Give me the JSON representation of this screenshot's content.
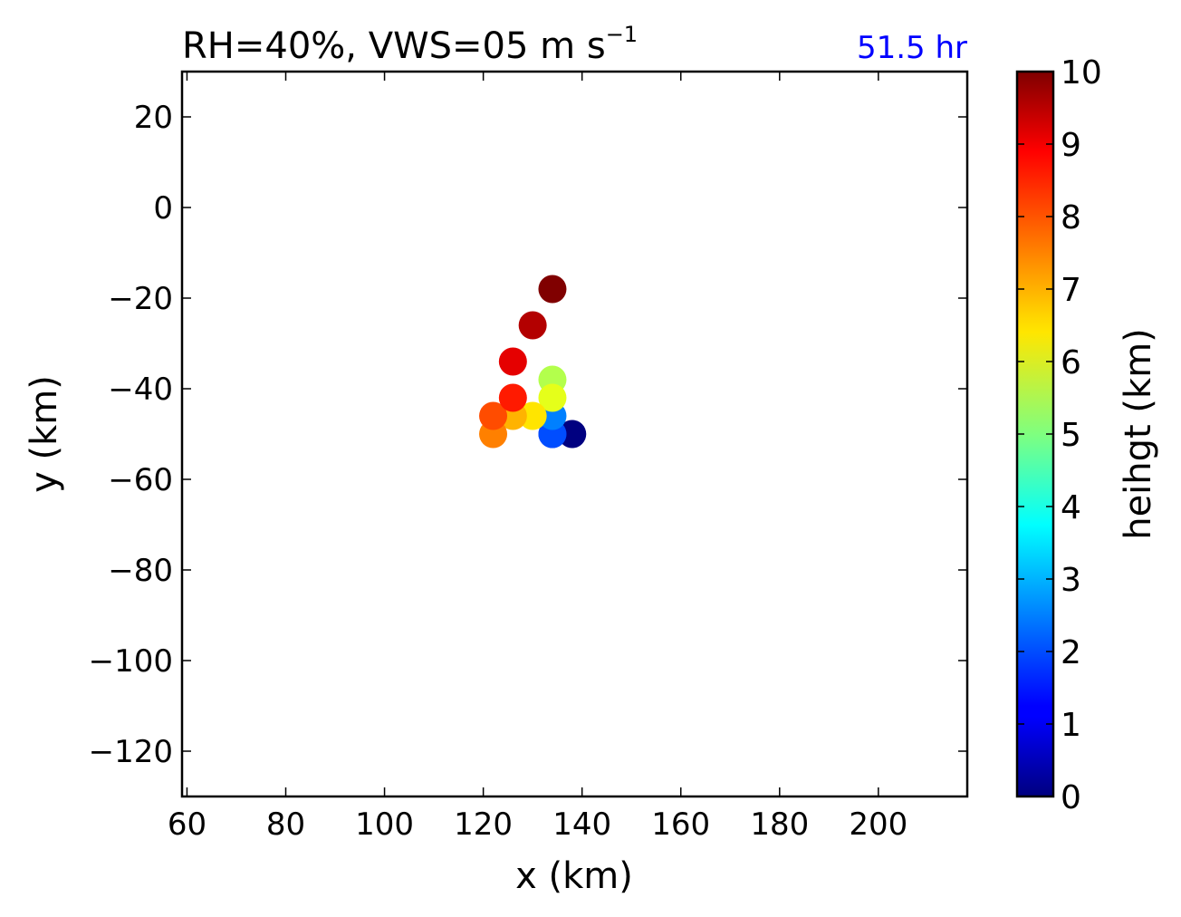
{
  "chart_data": {
    "type": "scatter",
    "title_main": "RH=40%, VWS=05 m s",
    "title_sup": "−1",
    "time_label": "51.5 hr",
    "time_color": "#0000ff",
    "xlabel": "x (km)",
    "ylabel": "y (km)",
    "xlim": [
      59,
      218
    ],
    "ylim": [
      -130,
      30
    ],
    "xticks": [
      60,
      80,
      100,
      120,
      140,
      160,
      180,
      200
    ],
    "xtick_labels": [
      "60",
      "80",
      "100",
      "120",
      "140",
      "160",
      "180",
      "200"
    ],
    "yticks": [
      20,
      0,
      -20,
      -40,
      -60,
      -80,
      -100,
      -120
    ],
    "ytick_labels": [
      "20",
      "0",
      "−20",
      "−40",
      "−60",
      "−80",
      "−100",
      "−120"
    ],
    "grid": false,
    "colorbar": {
      "label": "heihgt (km)",
      "colormap": "jet",
      "range": [
        0,
        10
      ],
      "ticks": [
        0,
        1,
        2,
        3,
        4,
        5,
        6,
        7,
        8,
        9,
        10
      ],
      "tick_labels": [
        "0",
        "1",
        "2",
        "3",
        "4",
        "5",
        "6",
        "7",
        "8",
        "9",
        "10"
      ]
    },
    "points": [
      {
        "x": 138,
        "y": -50,
        "height": 0.0
      },
      {
        "x": 134,
        "y": -50,
        "height": 1.5
      },
      {
        "x": 134,
        "y": -50,
        "height": 2.0
      },
      {
        "x": 134,
        "y": -46,
        "height": 2.5
      },
      {
        "x": 134,
        "y": -38,
        "height": 5.5
      },
      {
        "x": 134,
        "y": -42,
        "height": 6.0
      },
      {
        "x": 130,
        "y": -46,
        "height": 6.5
      },
      {
        "x": 126,
        "y": -46,
        "height": 7.0
      },
      {
        "x": 122,
        "y": -50,
        "height": 7.5
      },
      {
        "x": 122,
        "y": -46,
        "height": 8.0
      },
      {
        "x": 126,
        "y": -42,
        "height": 8.5
      },
      {
        "x": 126,
        "y": -34,
        "height": 9.0
      },
      {
        "x": 130,
        "y": -26,
        "height": 9.5
      },
      {
        "x": 134,
        "y": -18,
        "height": 10.0
      }
    ]
  }
}
